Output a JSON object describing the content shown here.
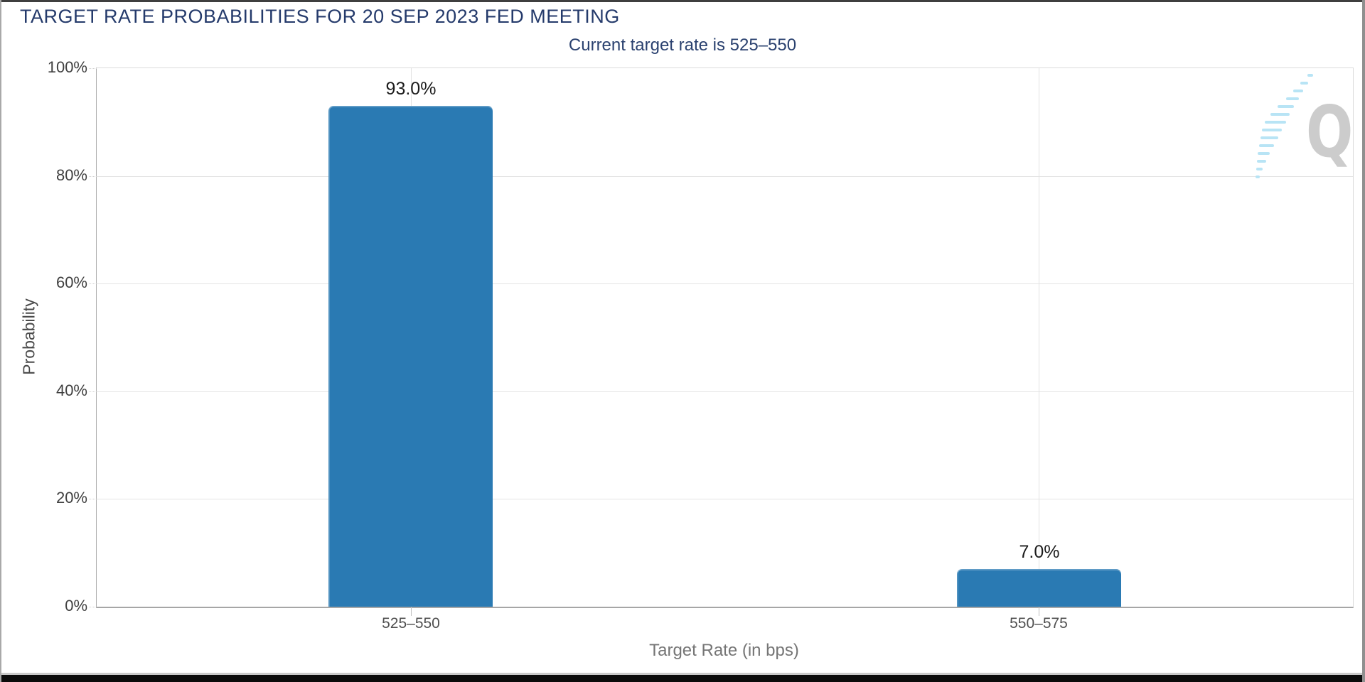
{
  "chart_data": {
    "type": "bar",
    "title": "TARGET RATE PROBABILITIES FOR 20 SEP 2023 FED MEETING",
    "subtitle": "Current target rate is 525–550",
    "categories": [
      "525–550",
      "550–575"
    ],
    "values": [
      93.0,
      7.0
    ],
    "value_labels": [
      "93.0%",
      "7.0%"
    ],
    "xlabel": "Target Rate (in bps)",
    "ylabel": "Probability",
    "ylim": [
      0,
      100
    ],
    "yticks": [
      "0%",
      "20%",
      "40%",
      "60%",
      "80%",
      "100%"
    ],
    "grid": true,
    "legend": "none",
    "bar_color": "#2a7ab3",
    "title_color": "#243a6b",
    "grid_color": "#e4e4e4",
    "watermark_icon": "q-logo",
    "watermark_blue": "#b5e3f5",
    "watermark_gray": "#c4c4c4"
  }
}
